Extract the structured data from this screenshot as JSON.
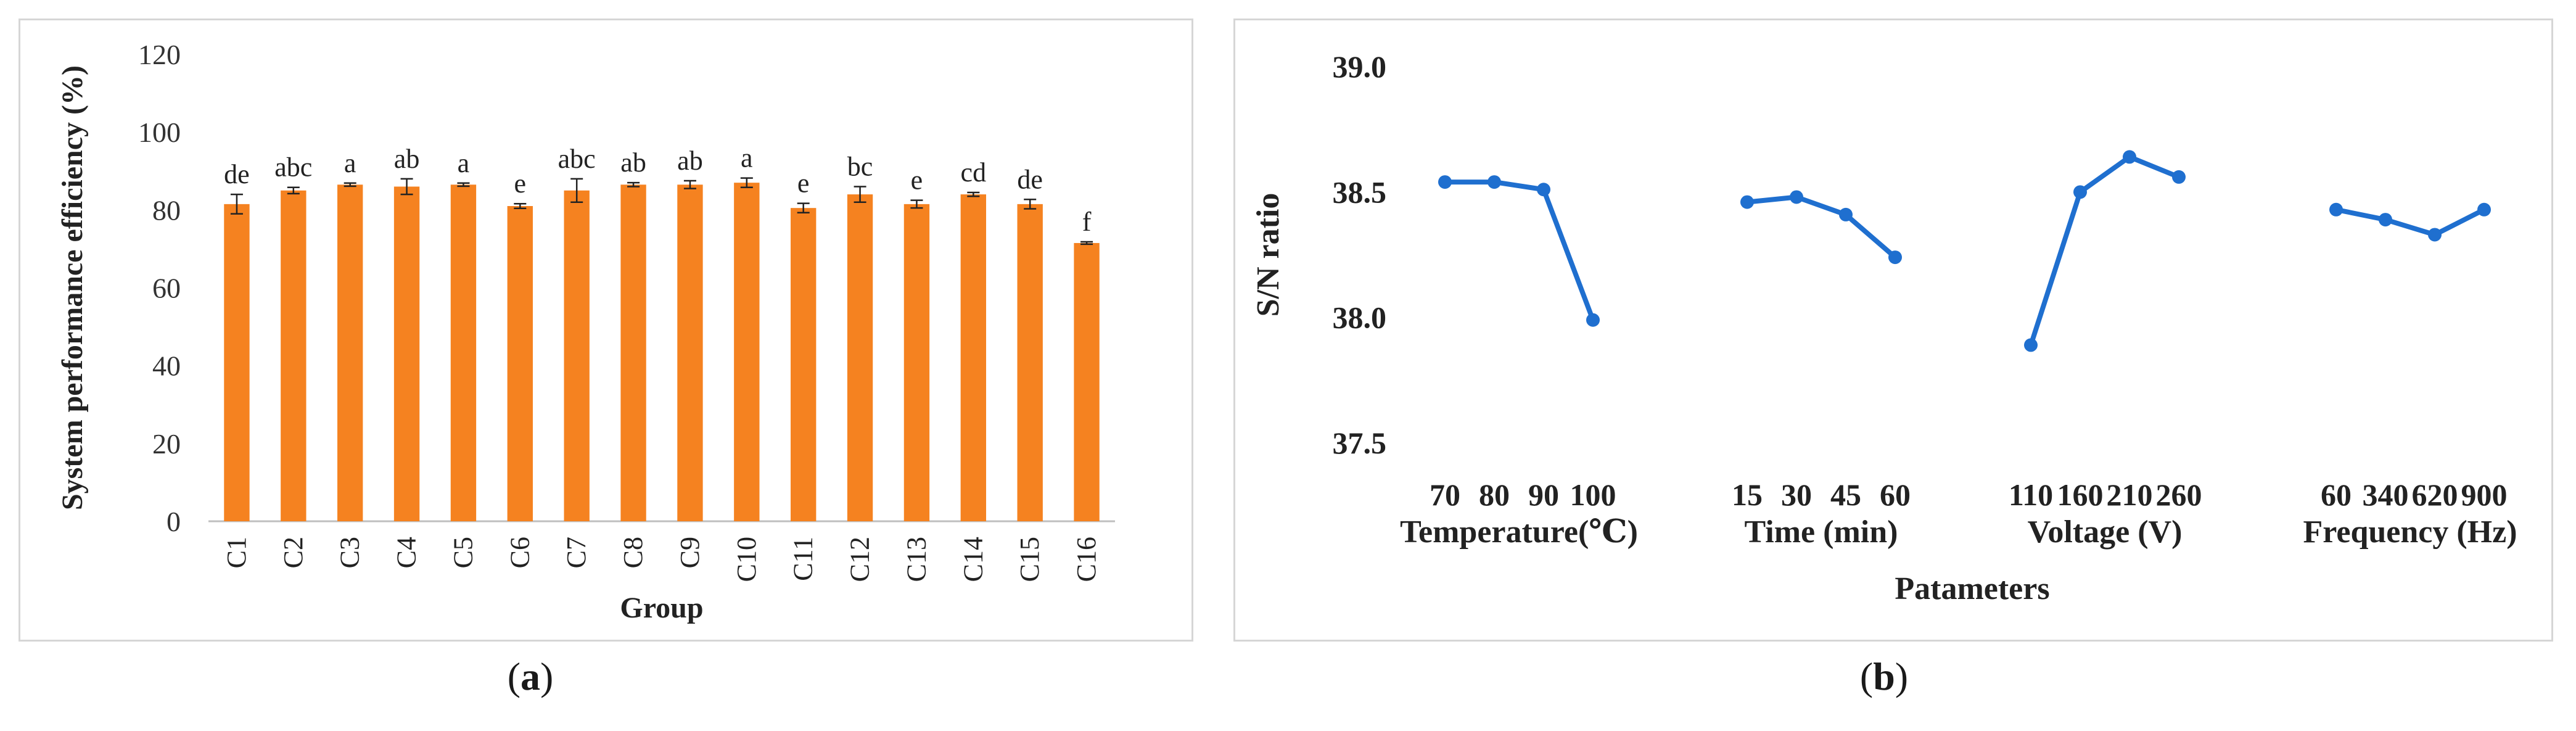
{
  "chart_data": [
    {
      "type": "bar",
      "xlabel": "Group",
      "ylabel": "System performance efficiency (%)",
      "ylim": [
        0,
        120
      ],
      "yticks": [
        0,
        20,
        40,
        60,
        80,
        100,
        120
      ],
      "grid": false,
      "bar_color": "#f58220",
      "categories": [
        "C1",
        "C2",
        "C3",
        "C4",
        "C5",
        "C6",
        "C7",
        "C8",
        "C9",
        "C10",
        "C11",
        "C12",
        "C13",
        "C14",
        "C15",
        "C16"
      ],
      "values": [
        81.5,
        85.0,
        86.5,
        86.0,
        86.5,
        81.0,
        85.0,
        86.5,
        86.5,
        87.0,
        80.5,
        84.0,
        81.5,
        84.0,
        81.5,
        71.5
      ],
      "errors": [
        2.5,
        0.8,
        0.4,
        2.0,
        0.4,
        0.6,
        3.0,
        0.5,
        1.0,
        1.2,
        1.2,
        2.0,
        1.0,
        0.5,
        1.2,
        0.3
      ],
      "annotations": [
        "de",
        "abc",
        "a",
        "ab",
        "a",
        "e",
        "abc",
        "ab",
        "ab",
        "a",
        "e",
        "bc",
        "e",
        "cd",
        "de",
        "f"
      ]
    },
    {
      "type": "line",
      "xlabel": "Patameters",
      "ylabel": "S/N ratio",
      "ylim": [
        37.5,
        39.0
      ],
      "yticks": [
        "37.5",
        "38.0",
        "38.5",
        "39.0"
      ],
      "grid": false,
      "line_color": "#1f6fcf",
      "series": [
        {
          "name": "Temperature(℃)",
          "x": [
            "70",
            "80",
            "90",
            "100"
          ],
          "values": [
            38.54,
            38.54,
            38.51,
            37.99
          ]
        },
        {
          "name": "Time (min)",
          "x": [
            "15",
            "30",
            "45",
            "60"
          ],
          "values": [
            38.46,
            38.48,
            38.41,
            38.24
          ]
        },
        {
          "name": "Voltage (V)",
          "x": [
            "110",
            "160",
            "210",
            "260"
          ],
          "values": [
            37.89,
            38.5,
            38.64,
            38.56
          ]
        },
        {
          "name": "Frequency (Hz)",
          "x": [
            "60",
            "340",
            "620",
            "900"
          ],
          "values": [
            38.43,
            38.39,
            38.33,
            38.43
          ]
        }
      ]
    }
  ],
  "captions": {
    "a": {
      "open": "(",
      "letter": "a",
      "close": ")"
    },
    "b": {
      "open": "(",
      "letter": "b",
      "close": ")"
    }
  }
}
